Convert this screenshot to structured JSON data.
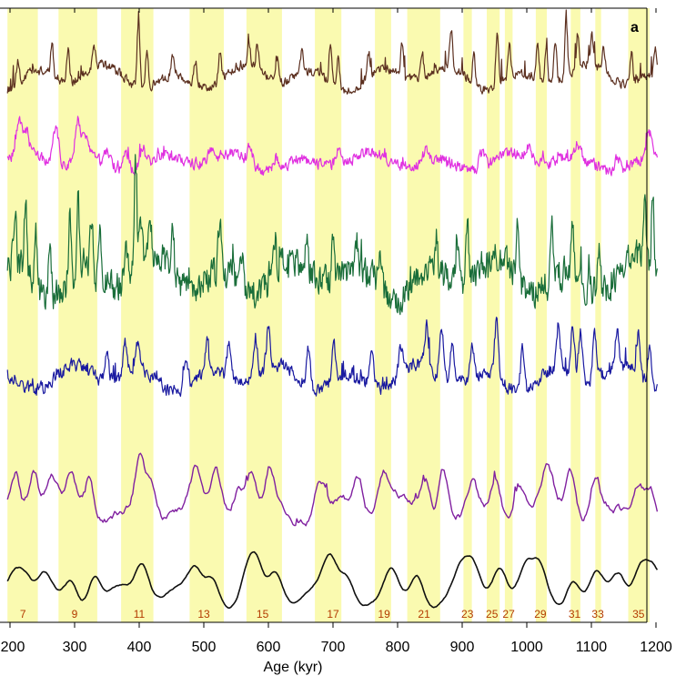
{
  "chart_data": {
    "type": "line",
    "panel_label": "a",
    "xlabel": "Age (kyr)",
    "xlim": [
      195,
      1205
    ],
    "x_ticks": [
      200,
      300,
      400,
      500,
      600,
      700,
      800,
      900,
      1000,
      1100,
      1200
    ],
    "x_tick_labels": [
      "200",
      "300",
      "400",
      "500",
      "600",
      "700",
      "800",
      "900",
      "1000",
      "1100",
      "1200"
    ],
    "colors": {
      "band": "#fafab0",
      "axis": "#000000",
      "mis_label": "#b33b00"
    },
    "interglacial_bands": [
      {
        "start": 196,
        "end": 243,
        "label": "7",
        "label_x": 220
      },
      {
        "start": 275,
        "end": 335,
        "label": "9",
        "label_x": 300
      },
      {
        "start": 372,
        "end": 422,
        "label": "11",
        "label_x": 400
      },
      {
        "start": 478,
        "end": 531,
        "label": "13",
        "label_x": 500
      },
      {
        "start": 566,
        "end": 621,
        "label": "15",
        "label_x": 591
      },
      {
        "start": 672,
        "end": 713,
        "label": "17",
        "label_x": 700
      },
      {
        "start": 765,
        "end": 790,
        "label": "19",
        "label_x": 779
      },
      {
        "start": 815,
        "end": 866,
        "label": "21",
        "label_x": 841
      },
      {
        "start": 902,
        "end": 915,
        "label": "23",
        "label_x": 908
      },
      {
        "start": 938,
        "end": 958,
        "label": "25",
        "label_x": 946
      },
      {
        "start": 966,
        "end": 978,
        "label": "27",
        "label_x": 972
      },
      {
        "start": 1014,
        "end": 1031,
        "label": "29",
        "label_x": 1021
      },
      {
        "start": 1068,
        "end": 1083,
        "label": "31",
        "label_x": 1074
      },
      {
        "start": 1106,
        "end": 1115,
        "label": "33",
        "label_x": 1110
      },
      {
        "start": 1157,
        "end": 1190,
        "label": "35",
        "label_x": 1173
      }
    ],
    "series": [
      {
        "color": "#5c3020",
        "baseline": 0.5,
        "amplitude": 1.0,
        "stroke": 1.2,
        "peaks": [
          [
            212,
            0.3
          ],
          [
            265,
            0.45
          ],
          [
            290,
            0.5
          ],
          [
            330,
            0.35
          ],
          [
            399,
            1.0
          ],
          [
            412,
            0.55
          ],
          [
            452,
            0.3
          ],
          [
            487,
            0.35
          ],
          [
            525,
            0.4
          ],
          [
            570,
            0.35
          ],
          [
            583,
            0.4
          ],
          [
            614,
            0.3
          ],
          [
            652,
            0.35
          ],
          [
            696,
            0.55
          ],
          [
            708,
            0.45
          ],
          [
            755,
            0.3
          ],
          [
            807,
            0.5
          ],
          [
            838,
            0.4
          ],
          [
            883,
            0.55
          ],
          [
            918,
            0.45
          ],
          [
            954,
            0.75
          ],
          [
            973,
            0.45
          ],
          [
            1017,
            0.55
          ],
          [
            1030,
            0.5
          ],
          [
            1044,
            0.65
          ],
          [
            1061,
            0.85
          ],
          [
            1079,
            0.5
          ],
          [
            1101,
            0.4
          ],
          [
            1119,
            0.35
          ],
          [
            1162,
            0.45
          ],
          [
            1199,
            0.35
          ]
        ]
      },
      {
        "color": "#e030e0",
        "baseline": 0.4,
        "amplitude": 1.0,
        "stroke": 1.2,
        "peaks": [
          [
            214,
            0.6
          ],
          [
            225,
            0.45
          ],
          [
            271,
            0.75
          ],
          [
            305,
            0.85
          ],
          [
            317,
            0.5
          ],
          [
            350,
            0.3
          ],
          [
            380,
            0.4
          ],
          [
            405,
            0.35
          ],
          [
            512,
            0.25
          ],
          [
            571,
            0.3
          ],
          [
            612,
            0.25
          ],
          [
            708,
            0.3
          ],
          [
            844,
            0.25
          ],
          [
            930,
            0.3
          ],
          [
            1003,
            0.3
          ],
          [
            1078,
            0.25
          ],
          [
            1140,
            0.3
          ],
          [
            1190,
            0.5
          ]
        ]
      },
      {
        "color": "#1a6e3a",
        "baseline": 0.35,
        "amplitude": 1.0,
        "stroke": 1.2,
        "peaks": [
          [
            208,
            0.45
          ],
          [
            224,
            0.65
          ],
          [
            240,
            0.5
          ],
          [
            262,
            0.6
          ],
          [
            293,
            0.65
          ],
          [
            305,
            0.75
          ],
          [
            326,
            0.6
          ],
          [
            339,
            0.45
          ],
          [
            379,
            0.45
          ],
          [
            394,
            1.0
          ],
          [
            402,
            0.5
          ],
          [
            417,
            0.35
          ],
          [
            452,
            0.4
          ],
          [
            524,
            0.45
          ],
          [
            559,
            0.35
          ],
          [
            610,
            0.4
          ],
          [
            659,
            0.35
          ],
          [
            700,
            0.45
          ],
          [
            736,
            0.3
          ],
          [
            773,
            0.35
          ],
          [
            860,
            0.3
          ],
          [
            892,
            0.5
          ],
          [
            908,
            0.5
          ],
          [
            986,
            0.6
          ],
          [
            1039,
            0.5
          ],
          [
            1071,
            0.55
          ],
          [
            1112,
            0.45
          ],
          [
            1183,
            0.6
          ],
          [
            1195,
            0.75
          ]
        ]
      },
      {
        "color": "#1a1aa0",
        "baseline": 0.3,
        "amplitude": 1.0,
        "stroke": 1.2,
        "peaks": [
          [
            350,
            0.35
          ],
          [
            378,
            0.4
          ],
          [
            398,
            0.4
          ],
          [
            473,
            0.45
          ],
          [
            505,
            0.4
          ],
          [
            539,
            0.45
          ],
          [
            580,
            0.55
          ],
          [
            600,
            0.6
          ],
          [
            662,
            0.5
          ],
          [
            701,
            0.5
          ],
          [
            760,
            0.45
          ],
          [
            805,
            0.4
          ],
          [
            845,
            0.55
          ],
          [
            868,
            0.7
          ],
          [
            884,
            0.55
          ],
          [
            915,
            0.45
          ],
          [
            953,
            0.8
          ],
          [
            993,
            0.55
          ],
          [
            1049,
            0.6
          ],
          [
            1071,
            0.7
          ],
          [
            1083,
            0.65
          ],
          [
            1105,
            0.6
          ],
          [
            1140,
            0.55
          ],
          [
            1173,
            0.55
          ],
          [
            1190,
            0.5
          ]
        ]
      },
      {
        "color": "#8020a0",
        "baseline": 0.25,
        "amplitude": 1.0,
        "stroke": 1.4,
        "peaks": [
          [
            209,
            0.5
          ],
          [
            236,
            0.55
          ],
          [
            264,
            0.3
          ],
          [
            296,
            0.45
          ],
          [
            323,
            0.55
          ],
          [
            401,
            0.7
          ],
          [
            418,
            0.4
          ],
          [
            488,
            0.4
          ],
          [
            518,
            0.45
          ],
          [
            554,
            0.4
          ],
          [
            572,
            0.5
          ],
          [
            603,
            0.5
          ],
          [
            680,
            0.45
          ],
          [
            740,
            0.4
          ],
          [
            778,
            0.5
          ],
          [
            843,
            0.5
          ],
          [
            870,
            0.7
          ],
          [
            916,
            0.4
          ],
          [
            951,
            0.5
          ],
          [
            988,
            0.4
          ],
          [
            1033,
            0.45
          ],
          [
            1068,
            0.55
          ],
          [
            1105,
            0.45
          ],
          [
            1175,
            0.45
          ],
          [
            1192,
            0.35
          ]
        ]
      },
      {
        "color": "#101010",
        "baseline": 0.25,
        "amplitude": 1.0,
        "stroke": 1.6,
        "peaks": [
          [
            206,
            0.5
          ],
          [
            223,
            0.45
          ],
          [
            252,
            0.35
          ],
          [
            295,
            0.45
          ],
          [
            330,
            0.55
          ],
          [
            405,
            0.6
          ],
          [
            487,
            0.4
          ],
          [
            514,
            0.5
          ],
          [
            567,
            0.45
          ],
          [
            581,
            0.55
          ],
          [
            612,
            0.5
          ],
          [
            695,
            0.5
          ],
          [
            722,
            0.35
          ],
          [
            790,
            0.45
          ],
          [
            831,
            0.55
          ],
          [
            897,
            0.35
          ],
          [
            916,
            0.45
          ],
          [
            958,
            0.6
          ],
          [
            999,
            0.45
          ],
          [
            1020,
            0.5
          ],
          [
            1071,
            0.55
          ],
          [
            1107,
            0.4
          ],
          [
            1143,
            0.4
          ],
          [
            1175,
            0.6
          ],
          [
            1193,
            0.45
          ]
        ]
      }
    ]
  }
}
